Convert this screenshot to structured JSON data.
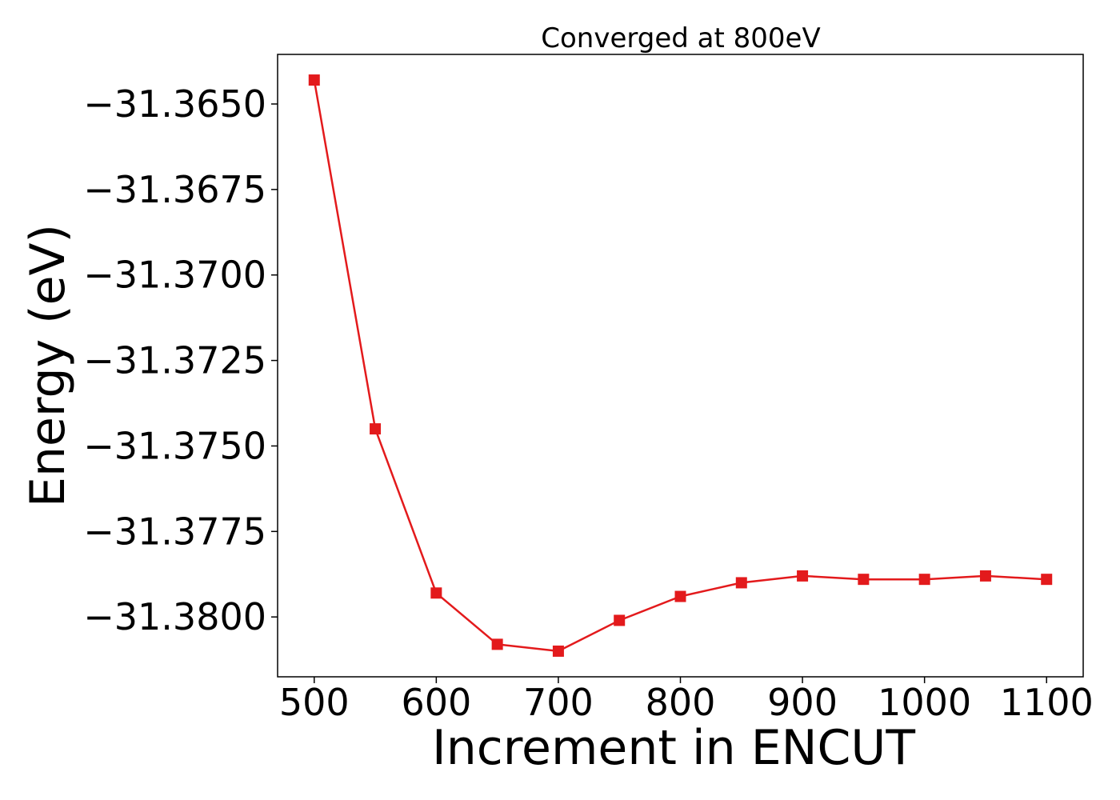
{
  "chart_data": {
    "type": "line",
    "title": "Converged at 800eV",
    "xlabel": "Increment in ENCUT",
    "ylabel": "Energy (eV)",
    "x": [
      500,
      550,
      600,
      650,
      700,
      750,
      800,
      850,
      900,
      950,
      1000,
      1050,
      1100
    ],
    "series": [
      {
        "values": [
          -31.3643,
          -31.3745,
          -31.3793,
          -31.3808,
          -31.381,
          -31.3801,
          -31.3794,
          -31.379,
          -31.3788,
          -31.3789,
          -31.3789,
          -31.3788,
          -31.3789
        ]
      }
    ],
    "xlim": [
      470,
      1130
    ],
    "ylim": [
      -31.38175,
      -31.36355
    ],
    "xticks": [
      500,
      600,
      700,
      800,
      900,
      1000,
      1100
    ],
    "xtick_labels": [
      "500",
      "600",
      "700",
      "800",
      "900",
      "1000",
      "1100"
    ],
    "yticks": [
      -31.365,
      -31.3675,
      -31.37,
      -31.3725,
      -31.375,
      -31.3775,
      -31.38
    ],
    "ytick_labels": [
      "−31.3650",
      "−31.3675",
      "−31.3700",
      "−31.3725",
      "−31.3750",
      "−31.3775",
      "−31.3800"
    ],
    "line_color": "#e31a1c",
    "marker": "square",
    "grid": false,
    "legend": false
  }
}
